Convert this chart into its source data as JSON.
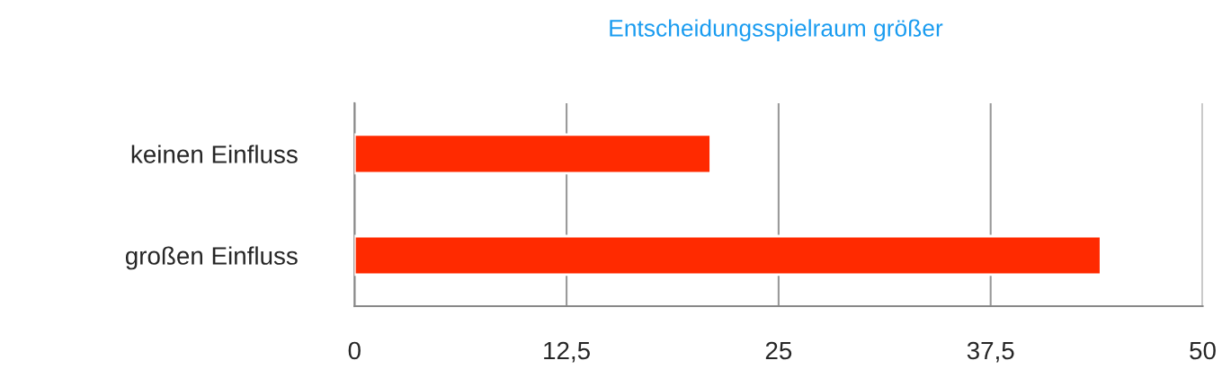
{
  "chart_data": {
    "type": "bar",
    "orientation": "horizontal",
    "title": "Entscheidungsspielraum größer",
    "categories": [
      "keinen Einfluss",
      "großen Einfluss"
    ],
    "values": [
      21,
      44
    ],
    "color": "#ff2a00",
    "xlim": [
      0,
      50
    ],
    "xticks": [
      0,
      {
        "value": 12.5,
        "label": "12,5"
      },
      25,
      {
        "value": 37.5,
        "label": "37,5"
      },
      50
    ],
    "grid": "x",
    "legend": false
  }
}
